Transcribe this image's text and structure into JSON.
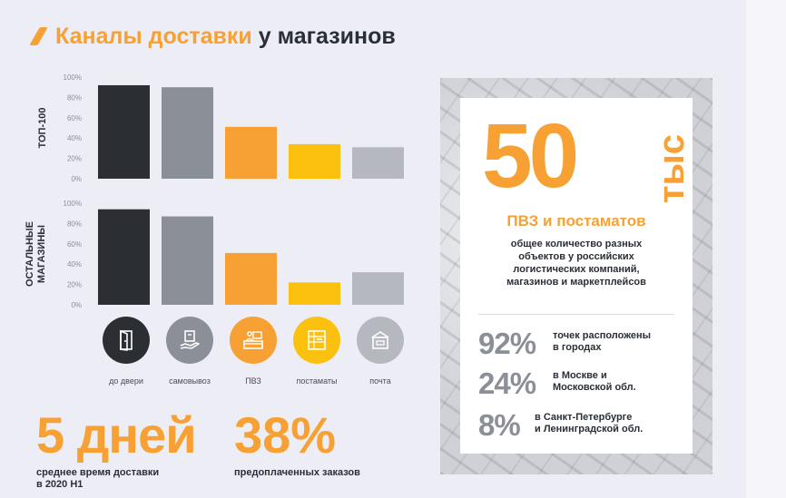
{
  "header": {
    "title_accent": "Каналы доставки",
    "title_rest": "у магазинов"
  },
  "colors": {
    "dark": "#2b2f33",
    "grey": "#8b8f97",
    "orange": "#f7a033",
    "yellow": "#fcc10f",
    "lightgrey": "#b6b8c0"
  },
  "chart_data": [
    {
      "type": "bar",
      "title": "",
      "ylabel": "ТОП-100",
      "categories": [
        "до двери",
        "самовывоз",
        "ПВЗ",
        "постаматы",
        "почта"
      ],
      "values": [
        92,
        90,
        51,
        34,
        31
      ],
      "ylim": [
        0,
        100
      ],
      "yticks": [
        "0%",
        "20%",
        "40%",
        "60%",
        "80%",
        "100%"
      ],
      "grid": false
    },
    {
      "type": "bar",
      "title": "",
      "ylabel": "ОСТАЛЬНЫЕ МАГАЗИНЫ",
      "ylabel_lines": [
        "ОСТАЛЬНЫЕ",
        "МАГАЗИНЫ"
      ],
      "categories": [
        "до двери",
        "самовывоз",
        "ПВЗ",
        "постаматы",
        "почта"
      ],
      "values": [
        94,
        87,
        51,
        22,
        32
      ],
      "ylim": [
        0,
        100
      ],
      "yticks": [
        "0%",
        "20%",
        "40%",
        "60%",
        "80%",
        "100%"
      ],
      "grid": false
    }
  ],
  "channels": [
    {
      "label": "до двери",
      "icon": "door-icon"
    },
    {
      "label": "самовывоз",
      "icon": "pickup-hand-icon"
    },
    {
      "label": "ПВЗ",
      "icon": "pickup-point-icon"
    },
    {
      "label": "постаматы",
      "icon": "parcel-locker-icon"
    },
    {
      "label": "почта",
      "icon": "post-mailbox-icon"
    }
  ],
  "stats": {
    "days_value": "5 дней",
    "days_caption": [
      "среднее время доставки",
      "в 2020 H1"
    ],
    "prepaid_value": "38%",
    "prepaid_caption": "предоплаченных заказов"
  },
  "panel": {
    "big_number": "50",
    "big_unit": "тыс",
    "subtitle": "ПВЗ и постаматов",
    "description": [
      "общее количество разных",
      "объектов у российских",
      "логистических компаний,",
      "магазинов и маркетплейсов"
    ],
    "rows": [
      {
        "value": "92%",
        "text": [
          "точек расположены",
          "в городах"
        ]
      },
      {
        "value": "24%",
        "text": [
          "в Москве и",
          "Московской обл."
        ]
      },
      {
        "value": "8%",
        "text": [
          "в Санкт-Петербурге",
          "и Ленинградской обл."
        ]
      }
    ]
  }
}
